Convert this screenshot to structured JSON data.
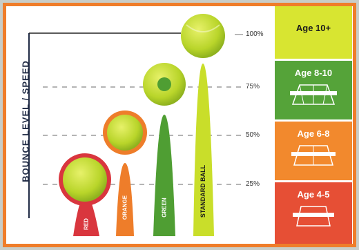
{
  "y_axis_label": "BOUNCE LEVEL / SPEED",
  "ticks": [
    "25%",
    "50%",
    "75%",
    "100%"
  ],
  "balls": [
    {
      "label": "RED",
      "color": "#d9363e"
    },
    {
      "label": "ORANGE",
      "color": "#ee7d2a"
    },
    {
      "label": "GREEN",
      "color": "#4f9e33"
    },
    {
      "label": "STANDARD BALL",
      "color": "#c9de2a"
    }
  ],
  "age_panels": [
    {
      "label": "Age 10+",
      "color": "#d8e531",
      "text_color": "#1c1c1c"
    },
    {
      "label": "Age 8-10",
      "color": "#55a339",
      "text_color": "#ffffff"
    },
    {
      "label": "Age 6-8",
      "color": "#f2892d",
      "text_color": "#ffffff"
    },
    {
      "label": "Age 4-5",
      "color": "#e64f35",
      "text_color": "#ffffff"
    }
  ]
}
